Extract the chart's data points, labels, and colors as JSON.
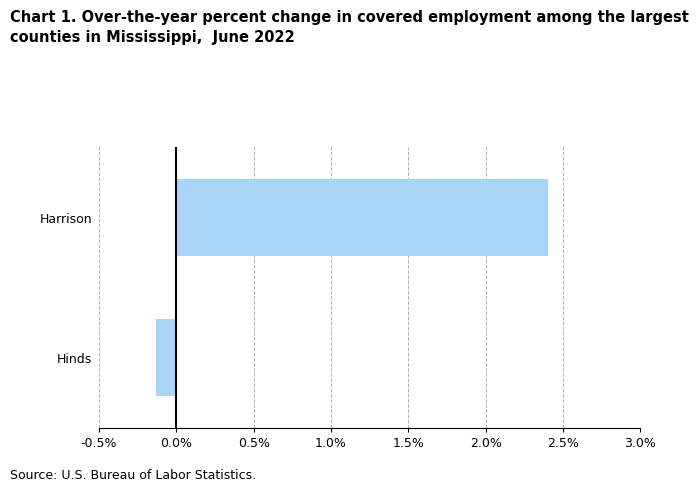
{
  "title_line1": "Chart 1. Over-the-year percent change in covered employment among the largest",
  "title_line2": "counties in Mississippi,  June 2022",
  "categories": [
    "Hinds",
    "Harrison"
  ],
  "values": [
    -0.13,
    2.4
  ],
  "bar_color": "#a8d4f5",
  "xlim_min": -0.005,
  "xlim_max": 0.03,
  "xticks": [
    -0.005,
    0.0,
    0.005,
    0.01,
    0.015,
    0.02,
    0.025,
    0.03
  ],
  "xtick_labels": [
    "-0.5%",
    "0.0%",
    "0.5%",
    "1.0%",
    "1.5%",
    "2.0%",
    "2.5%",
    "3.0%"
  ],
  "source": "Source: U.S. Bureau of Labor Statistics.",
  "title_fontsize": 10.5,
  "tick_fontsize": 9,
  "source_fontsize": 9,
  "grid_color": "#b0b0b0",
  "spine_color": "#000000",
  "bar_height": 0.55
}
